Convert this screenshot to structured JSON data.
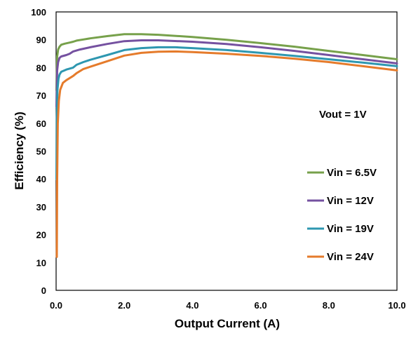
{
  "chart_data": {
    "type": "line",
    "title": "",
    "xlabel": "Output Current (A)",
    "ylabel": "Efficiency (%)",
    "xlim": [
      0,
      10
    ],
    "ylim": [
      0,
      100
    ],
    "xticks": [
      "0.0",
      "2.0",
      "4.0",
      "6.0",
      "8.0",
      "10.0"
    ],
    "yticks": [
      "0",
      "10",
      "20",
      "30",
      "40",
      "50",
      "60",
      "70",
      "80",
      "90",
      "100"
    ],
    "grid": false,
    "annotation": "Vout = 1V",
    "legend_position": "right",
    "series": [
      {
        "name": "Vin = 6.5V",
        "color": "#77a14b",
        "points": [
          [
            0.01,
            72
          ],
          [
            0.03,
            84
          ],
          [
            0.06,
            86.5
          ],
          [
            0.1,
            87.5
          ],
          [
            0.15,
            88.2
          ],
          [
            0.25,
            88.6
          ],
          [
            0.4,
            89
          ],
          [
            0.5,
            89.3
          ],
          [
            0.6,
            89.7
          ],
          [
            0.8,
            90.1
          ],
          [
            1.0,
            90.5
          ],
          [
            1.5,
            91.3
          ],
          [
            2.0,
            92
          ],
          [
            2.5,
            92
          ],
          [
            3.0,
            91.8
          ],
          [
            4.0,
            91
          ],
          [
            5.0,
            90
          ],
          [
            6.0,
            88.8
          ],
          [
            7.0,
            87.5
          ],
          [
            8.0,
            86
          ],
          [
            9.0,
            84.5
          ],
          [
            10.0,
            83
          ]
        ]
      },
      {
        "name": "Vin = 12V",
        "color": "#7551a0",
        "points": [
          [
            0.01,
            66
          ],
          [
            0.03,
            79
          ],
          [
            0.06,
            82
          ],
          [
            0.1,
            83.5
          ],
          [
            0.15,
            84
          ],
          [
            0.3,
            84.5
          ],
          [
            0.4,
            85
          ],
          [
            0.5,
            85.8
          ],
          [
            0.7,
            86.5
          ],
          [
            1.0,
            87.3
          ],
          [
            1.5,
            88.5
          ],
          [
            2.0,
            89.5
          ],
          [
            2.5,
            89.8
          ],
          [
            3.0,
            89.8
          ],
          [
            4.0,
            89.3
          ],
          [
            5.0,
            88.5
          ],
          [
            6.0,
            87.3
          ],
          [
            7.0,
            86
          ],
          [
            8.0,
            84.5
          ],
          [
            9.0,
            83
          ],
          [
            10.0,
            81.5
          ]
        ]
      },
      {
        "name": "Vin = 19V",
        "color": "#2e97b0",
        "points": [
          [
            0.01,
            40
          ],
          [
            0.02,
            62
          ],
          [
            0.04,
            72
          ],
          [
            0.07,
            76
          ],
          [
            0.1,
            77.5
          ],
          [
            0.15,
            78.5
          ],
          [
            0.3,
            79.3
          ],
          [
            0.5,
            80
          ],
          [
            0.6,
            81
          ],
          [
            0.8,
            82
          ],
          [
            1.0,
            82.8
          ],
          [
            1.5,
            84.5
          ],
          [
            2.0,
            86.3
          ],
          [
            2.5,
            87
          ],
          [
            3.0,
            87.3
          ],
          [
            3.5,
            87.3
          ],
          [
            4.0,
            87
          ],
          [
            5.0,
            86.3
          ],
          [
            6.0,
            85.3
          ],
          [
            7.0,
            84.2
          ],
          [
            8.0,
            83
          ],
          [
            9.0,
            81.8
          ],
          [
            10.0,
            80.5
          ]
        ]
      },
      {
        "name": "Vin = 24V",
        "color": "#e57b2b",
        "points": [
          [
            0.02,
            12
          ],
          [
            0.03,
            40
          ],
          [
            0.05,
            60
          ],
          [
            0.08,
            68
          ],
          [
            0.12,
            72
          ],
          [
            0.2,
            74.5
          ],
          [
            0.3,
            75.5
          ],
          [
            0.5,
            77
          ],
          [
            0.6,
            78
          ],
          [
            0.8,
            79.5
          ],
          [
            1.0,
            80.3
          ],
          [
            1.5,
            82.3
          ],
          [
            2.0,
            84.3
          ],
          [
            2.5,
            85.3
          ],
          [
            3.0,
            85.7
          ],
          [
            3.5,
            85.8
          ],
          [
            4.0,
            85.6
          ],
          [
            5.0,
            85
          ],
          [
            6.0,
            84.2
          ],
          [
            7.0,
            83.2
          ],
          [
            8.0,
            82
          ],
          [
            9.0,
            80.5
          ],
          [
            10.0,
            79
          ]
        ]
      }
    ]
  }
}
